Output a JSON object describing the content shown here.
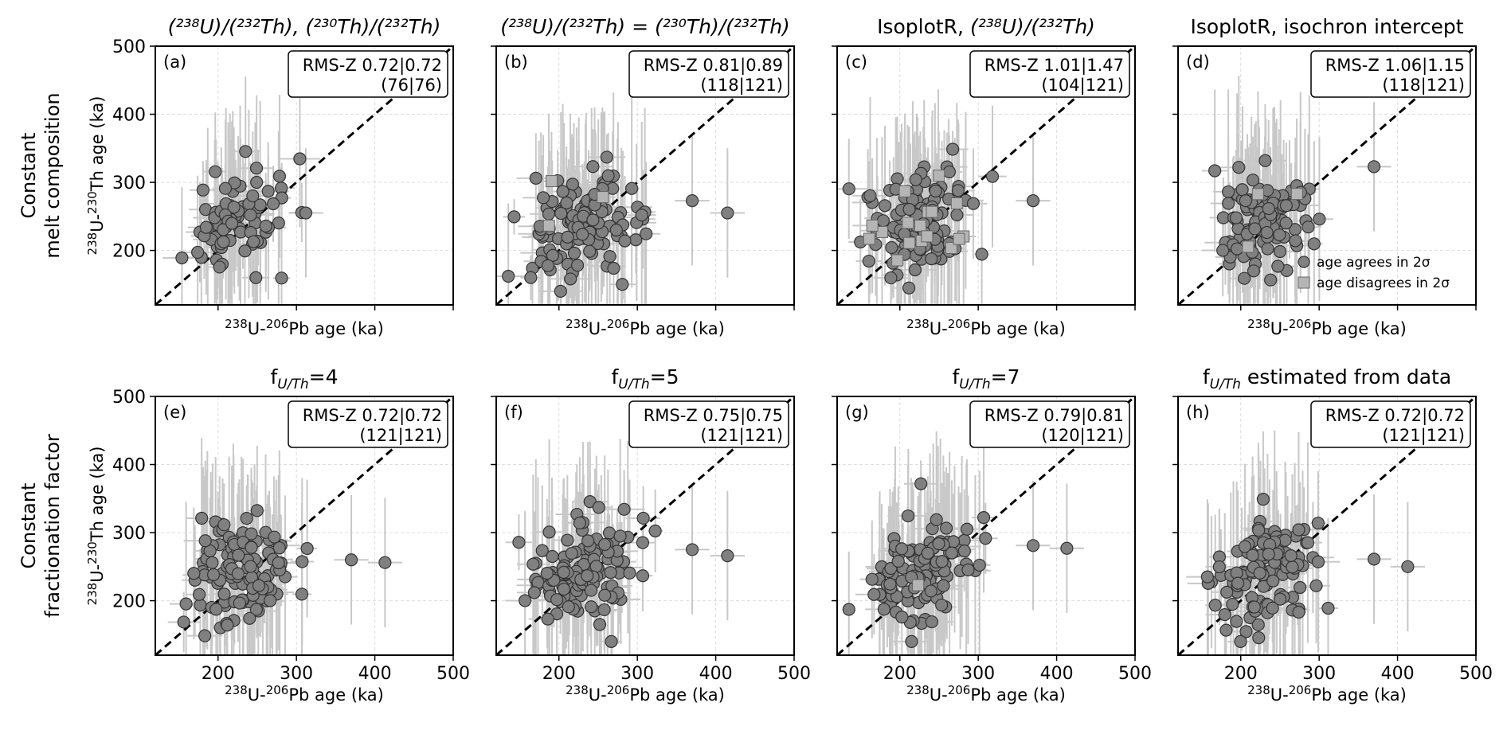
{
  "figure": {
    "row_labels": [
      {
        "line1": "Constant",
        "line2": "melt composition"
      },
      {
        "line1": "Constant",
        "line2": "fractionation factor"
      }
    ],
    "axis_labels": {
      "x_iso1": "238",
      "x_mid": "U-",
      "x_iso2": "206",
      "x_end": "Pb age (ka)",
      "y_iso1": "238",
      "y_mid": "U-",
      "y_iso2": "230",
      "y_end": "Th age (ka)"
    },
    "legend": {
      "agree": "age agrees in 2σ",
      "disagree": "age disagrees in 2σ"
    },
    "colors": {
      "agree_marker": "#808080",
      "disagree_marker": "#b5b5b5",
      "errorbar": "#c8c8c8",
      "grid": "#dddddd",
      "identity_line": "#000000"
    }
  },
  "chart_data": [
    {
      "type": "scatter",
      "panel": "(a)",
      "title": {
        "pre": "",
        "main": "(²³⁸U)/(²³²Th), (²³⁰Th)/(²³²Th)",
        "post": ""
      },
      "stat_line1": "RMS-Z 0.72|0.72",
      "stat_line2": "(76|76)",
      "xlim": [
        120,
        500
      ],
      "ylim": [
        120,
        500
      ],
      "xticks": [],
      "yticks": [
        200,
        300,
        400,
        500
      ],
      "n_agree": 76,
      "n_disagree": 0,
      "seed": 11,
      "outliers": [
        [
          312,
          255
        ]
      ]
    },
    {
      "type": "scatter",
      "panel": "(b)",
      "title": {
        "pre": "",
        "main": "(²³⁸U)/(²³²Th) = (²³⁰Th)/(²³²Th)",
        "post": ""
      },
      "stat_line1": "RMS-Z 0.81|0.89",
      "stat_line2": "(118|121)",
      "xlim": [
        120,
        500
      ],
      "ylim": [
        120,
        500
      ],
      "xticks": [],
      "yticks": [],
      "n_agree": 118,
      "n_disagree": 3,
      "seed": 22,
      "outliers": [
        [
          370,
          273
        ],
        [
          415,
          255
        ]
      ]
    },
    {
      "type": "scatter",
      "panel": "(c)",
      "title": {
        "pre": "IsoplotR, ",
        "main": "(²³⁸U)/(²³²Th)",
        "post": ""
      },
      "stat_line1": "RMS-Z 1.01|1.47",
      "stat_line2": "(104|121)",
      "xlim": [
        120,
        500
      ],
      "ylim": [
        120,
        500
      ],
      "xticks": [],
      "yticks": [],
      "n_agree": 104,
      "n_disagree": 17,
      "seed": 33,
      "outliers": [
        [
          370,
          273
        ]
      ]
    },
    {
      "type": "scatter",
      "panel": "(d)",
      "title": {
        "pre": "IsoplotR, isochron intercept",
        "main": "",
        "post": ""
      },
      "stat_line1": "RMS-Z 1.06|1.15",
      "stat_line2": "(118|121)",
      "xlim": [
        120,
        500
      ],
      "ylim": [
        120,
        500
      ],
      "xticks": [],
      "yticks": [],
      "n_agree": 118,
      "n_disagree": 3,
      "seed": 44,
      "outliers": [
        [
          370,
          323
        ]
      ],
      "legend": true
    },
    {
      "type": "scatter",
      "panel": "(e)",
      "title": {
        "pre": "f",
        "main": "U/Th",
        "post": "=4"
      },
      "title_subscript": true,
      "stat_line1": "RMS-Z 0.72|0.72",
      "stat_line2": "(121|121)",
      "xlim": [
        120,
        500
      ],
      "ylim": [
        120,
        500
      ],
      "xticks": [
        200,
        300,
        400,
        500
      ],
      "yticks": [
        200,
        300,
        400,
        500
      ],
      "n_agree": 121,
      "n_disagree": 0,
      "seed": 55,
      "outliers": [
        [
          370,
          260
        ],
        [
          413,
          256
        ]
      ]
    },
    {
      "type": "scatter",
      "panel": "(f)",
      "title": {
        "pre": "f",
        "main": "U/Th",
        "post": "=5"
      },
      "title_subscript": true,
      "stat_line1": "RMS-Z 0.75|0.75",
      "stat_line2": "(121|121)",
      "xlim": [
        120,
        500
      ],
      "ylim": [
        120,
        500
      ],
      "xticks": [
        200,
        300,
        400,
        500
      ],
      "yticks": [],
      "n_agree": 121,
      "n_disagree": 0,
      "seed": 66,
      "outliers": [
        [
          370,
          275
        ],
        [
          415,
          266
        ]
      ]
    },
    {
      "type": "scatter",
      "panel": "(g)",
      "title": {
        "pre": "f",
        "main": "U/Th",
        "post": "=7"
      },
      "title_subscript": true,
      "stat_line1": "RMS-Z 0.79|0.81",
      "stat_line2": "(120|121)",
      "xlim": [
        120,
        500
      ],
      "ylim": [
        120,
        500
      ],
      "xticks": [
        200,
        300,
        400,
        500
      ],
      "yticks": [],
      "n_agree": 120,
      "n_disagree": 1,
      "seed": 77,
      "outliers": [
        [
          370,
          281
        ],
        [
          413,
          277
        ]
      ]
    },
    {
      "type": "scatter",
      "panel": "(h)",
      "title": {
        "pre": "f",
        "main": "U/Th",
        "post": " estimated from data"
      },
      "title_subscript": true,
      "stat_line1": "RMS-Z 0.72|0.72",
      "stat_line2": "(121|121)",
      "xlim": [
        120,
        500
      ],
      "ylim": [
        120,
        500
      ],
      "xticks": [
        200,
        300,
        400,
        500
      ],
      "yticks": [],
      "n_agree": 121,
      "n_disagree": 0,
      "seed": 88,
      "outliers": [
        [
          370,
          261
        ],
        [
          413,
          250
        ]
      ]
    }
  ]
}
